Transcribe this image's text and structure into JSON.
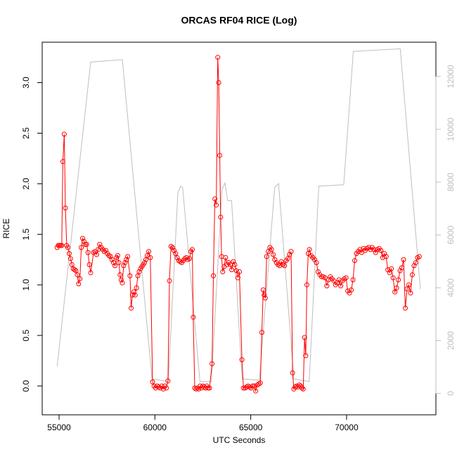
{
  "chart_data": {
    "type": "line",
    "title": "ORCAS RF04 RICE (Log)",
    "xlabel": "UTC Seconds",
    "ylabel": "RICE",
    "xlim": [
      54120,
      74660
    ],
    "ylim": [
      -0.285,
      3.4
    ],
    "y2lim": [
      -810,
      13300
    ],
    "xticks": [
      55000,
      60000,
      65000,
      70000
    ],
    "yticks": [
      {
        "value": 0,
        "label": "0.0"
      },
      {
        "value": 0.5,
        "label": "0.5"
      },
      {
        "value": 1,
        "label": "1.0"
      },
      {
        "value": 1.5,
        "label": "1.5"
      },
      {
        "value": 2,
        "label": "2.0"
      },
      {
        "value": 2.5,
        "label": "2.5"
      },
      {
        "value": 3,
        "label": "3.0"
      }
    ],
    "y2ticks": [
      0,
      2000,
      4000,
      6000,
      8000,
      10000,
      12000
    ],
    "series": [
      {
        "color": "#bebebe",
        "axis": "y2",
        "markers": false,
        "x": [
          54900,
          56650,
          58300,
          59850,
          60700,
          61200,
          61350,
          61450,
          62350,
          62950,
          63500,
          63650,
          63800,
          64000,
          64550,
          65450,
          66250,
          66450,
          67250,
          68050,
          68550,
          69850,
          70350,
          72800,
          73850
        ],
        "values": [
          1030,
          12550,
          12640,
          550,
          450,
          7600,
          7850,
          7800,
          450,
          450,
          7700,
          7970,
          7300,
          7300,
          550,
          500,
          7800,
          7950,
          550,
          450,
          7850,
          7900,
          12950,
          13050,
          3950
        ]
      },
      {
        "color": "#ff0000",
        "markers": true,
        "x": [
          54900,
          54960,
          55020,
          55080,
          55140,
          55200,
          55270,
          55330,
          55400,
          55460,
          55530,
          55600,
          55670,
          55740,
          55810,
          55880,
          55950,
          56020,
          56090,
          56160,
          56230,
          56300,
          56370,
          56440,
          56510,
          56580,
          56650,
          56800,
          56880,
          56960,
          57040,
          57120,
          57200,
          57280,
          57360,
          57440,
          57520,
          57600,
          57680,
          57760,
          57840,
          57920,
          58000,
          58060,
          58120,
          58180,
          58240,
          58300,
          58370,
          58440,
          58510,
          58580,
          58700,
          58760,
          58830,
          58900,
          58970,
          59040,
          59110,
          59180,
          59250,
          59320,
          59390,
          59460,
          59530,
          59600,
          59680,
          59760,
          59880,
          59960,
          60040,
          60120,
          60200,
          60280,
          60360,
          60440,
          60520,
          60600,
          60680,
          60760,
          60840,
          60920,
          61000,
          61080,
          61160,
          61240,
          61320,
          61400,
          61480,
          61560,
          61640,
          61720,
          61800,
          61880,
          61950,
          62000,
          62080,
          62150,
          62220,
          62290,
          62360,
          62430,
          62500,
          62570,
          62640,
          62710,
          62780,
          62850,
          62980,
          63050,
          63130,
          63200,
          63280,
          63330,
          63380,
          63430,
          63480,
          63540,
          63610,
          63690,
          63770,
          63850,
          63930,
          64010,
          64090,
          64170,
          64250,
          64330,
          64410,
          64540,
          64620,
          64700,
          64780,
          64860,
          64940,
          65020,
          65100,
          65180,
          65260,
          65340,
          65420,
          65500,
          65580,
          65650,
          65700,
          65760,
          65830,
          65915,
          66000,
          66085,
          66170,
          66255,
          66340,
          66425,
          66510,
          66595,
          66680,
          66765,
          66850,
          66935,
          67020,
          67105,
          67180,
          67250,
          67320,
          67390,
          67460,
          67530,
          67600,
          67670,
          67740,
          67810,
          67870,
          67930,
          68000,
          68060,
          68150,
          68241,
          68332,
          68423,
          68514,
          68605,
          68696,
          68787,
          68878,
          68969,
          69060,
          69151,
          69242,
          69333,
          69424,
          69515,
          69606,
          69697,
          69788,
          69879,
          69970,
          70061,
          70152,
          70243,
          70334,
          70425,
          70516,
          70607,
          70698,
          70789,
          70880,
          70971,
          71062,
          71153,
          71244,
          71335,
          71426,
          71517,
          71608,
          71699,
          71790,
          71881,
          71972,
          72063,
          72154,
          72245,
          72336,
          72427,
          72518,
          72609,
          72700,
          72791,
          72882,
          72973,
          73064,
          73155,
          73246,
          73337,
          73428,
          73519,
          73610,
          73701,
          73792
        ],
        "values": [
          1.37,
          1.39,
          1.39,
          1.39,
          1.39,
          2.22,
          2.49,
          1.76,
          1.39,
          1.37,
          1.31,
          1.26,
          1.2,
          1.16,
          1.15,
          1.14,
          1.1,
          1.01,
          1.06,
          1.37,
          1.46,
          1.43,
          1.4,
          1.4,
          1.32,
          1.2,
          1.12,
          1.32,
          1.33,
          1.3,
          1.35,
          1.4,
          1.37,
          1.35,
          1.33,
          1.34,
          1.31,
          1.29,
          1.28,
          1.25,
          1.22,
          1.19,
          1.27,
          1.29,
          1.22,
          1.1,
          1.05,
          1.02,
          1.19,
          1.22,
          1.25,
          1.28,
          1.09,
          0.77,
          0.9,
          0.93,
          0.9,
          0.97,
          1.09,
          1.13,
          1.16,
          1.18,
          1.2,
          1.22,
          1.25,
          1.29,
          1.33,
          1.27,
          0.04,
          0,
          -0.02,
          0,
          -0.01,
          -0.02,
          0,
          -0.03,
          0,
          -0.02,
          0.05,
          1.04,
          1.38,
          1.37,
          1.34,
          1.31,
          1.27,
          1.24,
          1.23,
          1.22,
          1.24,
          1.26,
          1.27,
          1.25,
          1.26,
          1.33,
          1.35,
          0.68,
          -0.02,
          -0.03,
          -0.02,
          -0.03,
          0,
          -0.02,
          0,
          -0.01,
          -0.02,
          0,
          -0.02,
          -0.02,
          0.22,
          1.09,
          1.85,
          1.79,
          3.25,
          3.0,
          2.28,
          1.67,
          1.28,
          1.13,
          1.18,
          1.27,
          1.2,
          1.22,
          1.2,
          1.15,
          1.23,
          1.2,
          1.14,
          1.07,
          1.13,
          0.26,
          -0.02,
          -0.02,
          -0.01,
          0,
          -0.01,
          -0.02,
          0,
          0,
          -0.05,
          0.01,
          0.02,
          0.03,
          0.53,
          0.95,
          0.9,
          0.87,
          1.28,
          1.33,
          1.37,
          1.35,
          1.3,
          1.25,
          1.22,
          1.2,
          1.19,
          1.23,
          1.2,
          1.19,
          1.24,
          1.26,
          1.3,
          1.33,
          0.13,
          -0.03,
          -0.01,
          0,
          -0.01,
          0.01,
          0,
          -0.02,
          -0.03,
          0.48,
          0.3,
          1.0,
          1.31,
          1.35,
          1.29,
          1.27,
          1.25,
          1.22,
          1.13,
          1.1,
          1.08,
          1.08,
          1.07,
          0.99,
          1.05,
          1.08,
          1.06,
          1.04,
          1.0,
          1.02,
          1.05,
          0.99,
          1.04,
          1.06,
          1.07,
          0.94,
          0.92,
          0.95,
          1.05,
          1.24,
          1.31,
          1.33,
          1.35,
          1.32,
          1.36,
          1.34,
          1.36,
          1.37,
          1.35,
          1.37,
          1.35,
          1.32,
          1.35,
          1.36,
          1.34,
          1.27,
          1.31,
          1.28,
          1.15,
          1.12,
          1.16,
          1.07,
          0.93,
          0.97,
          1.05,
          1.14,
          1.17,
          1.25,
          0.77,
          0.96,
          1.0,
          0.92,
          1.1,
          1.19,
          1.22,
          1.27,
          1.28
        ]
      }
    ]
  }
}
